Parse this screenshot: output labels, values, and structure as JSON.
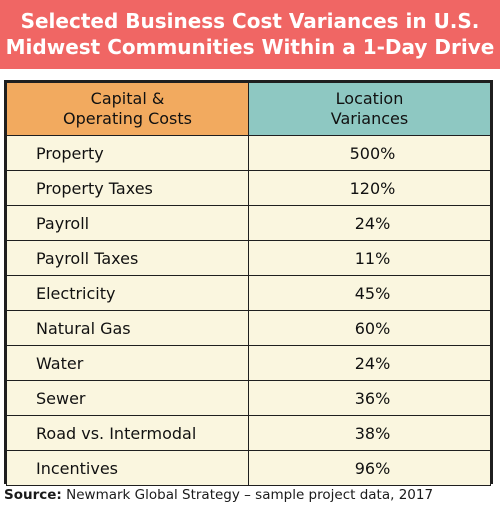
{
  "title": {
    "line1": "Selected Business Cost Variances in U.S.",
    "line2": "Midwest Communities Within a 1-Day Drive"
  },
  "colors": {
    "title_band": "#f06664",
    "header_left": "#f2aa5f",
    "header_right": "#8ec8c2",
    "row_background": "#faf6df"
  },
  "table": {
    "headers": {
      "left_line1": "Capital &",
      "left_line2": "Operating Costs",
      "right_line1": "Location",
      "right_line2": "Variances"
    },
    "rows": [
      {
        "category": "Property",
        "variance": "500%"
      },
      {
        "category": "Property Taxes",
        "variance": "120%"
      },
      {
        "category": "Payroll",
        "variance": "24%"
      },
      {
        "category": "Payroll Taxes",
        "variance": "11%"
      },
      {
        "category": "Electricity",
        "variance": "45%"
      },
      {
        "category": "Natural Gas",
        "variance": "60%"
      },
      {
        "category": "Water",
        "variance": "24%"
      },
      {
        "category": "Sewer",
        "variance": "36%"
      },
      {
        "category": "Road vs. Intermodal",
        "variance": "38%"
      },
      {
        "category": "Incentives",
        "variance": "96%"
      }
    ]
  },
  "source": {
    "label": "Source:",
    "text": " Newmark Global Strategy – sample project data, 2017"
  }
}
